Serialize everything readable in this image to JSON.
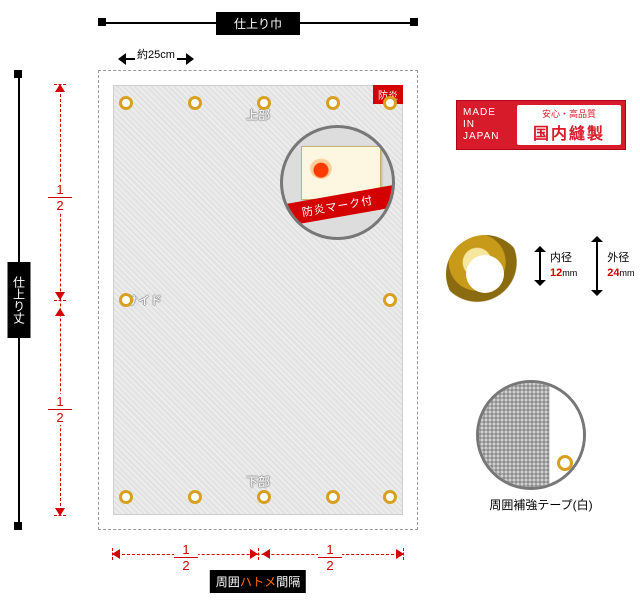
{
  "colors": {
    "accent_red": "#d40000",
    "black": "#000000",
    "grommet_ring": "#d8a020",
    "sheet_bg": "#e8e8e8",
    "badge_red": "#d81b2a"
  },
  "top_bar": {
    "label": "仕上り巾"
  },
  "left_bar": {
    "label": "仕上り丈"
  },
  "spacing": {
    "text": "約25cm"
  },
  "sheet": {
    "region_top": "上部",
    "region_side": "サイド",
    "region_bottom": "下部",
    "bouen_tag": "防炎",
    "fire_banner": "防炎マーク付",
    "grommets": {
      "cols_pct": [
        4,
        28,
        52,
        76,
        96
      ],
      "rows_pct": [
        4,
        50,
        96
      ]
    }
  },
  "vaxis": {
    "frac_top": "1",
    "frac_bottom": "2"
  },
  "haxis": {
    "frac_top": "1",
    "frac_bottom": "2",
    "caption_pre": "周囲",
    "caption_hl": "ハトメ",
    "caption_post": "間隔"
  },
  "badge": {
    "mij_l1": "MADE",
    "mij_l2": "IN",
    "mij_l3": "JAPAN",
    "small": "安心・高品質",
    "big": "国内縫製"
  },
  "grommet_detail": {
    "inner_label": "内径",
    "inner_val": "12",
    "outer_label": "外径",
    "outer_val": "24",
    "unit": "mm"
  },
  "tape": {
    "caption": "周囲補強テープ(白)"
  }
}
